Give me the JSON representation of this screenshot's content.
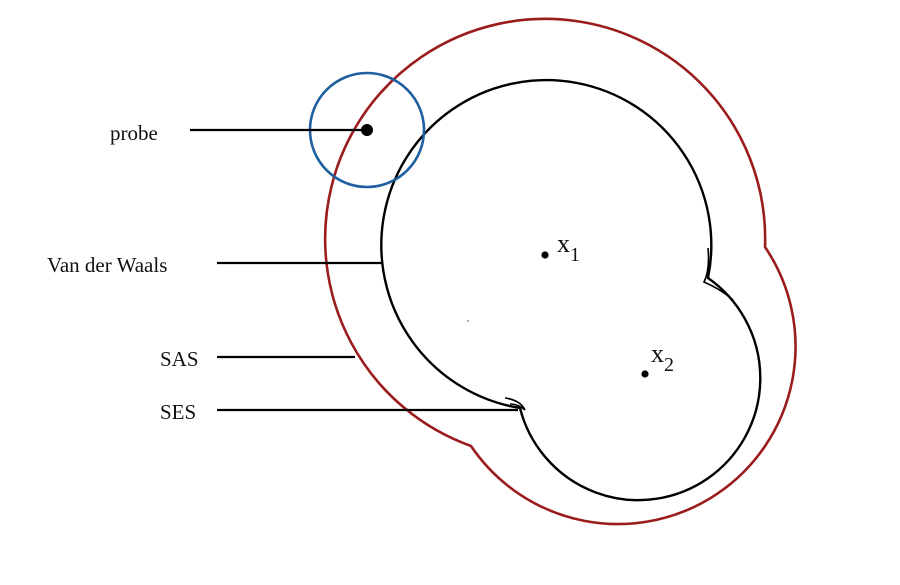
{
  "labels": {
    "probe": "probe",
    "vdw": "Van der Waals",
    "sas": "SAS",
    "ses": "SES"
  },
  "atoms": [
    {
      "name": "x",
      "sub": "1"
    },
    {
      "name": "x",
      "sub": "2"
    }
  ],
  "colors": {
    "sas": "#9b1c1c",
    "probe": "#1f5fa0",
    "surface": "#000000"
  }
}
